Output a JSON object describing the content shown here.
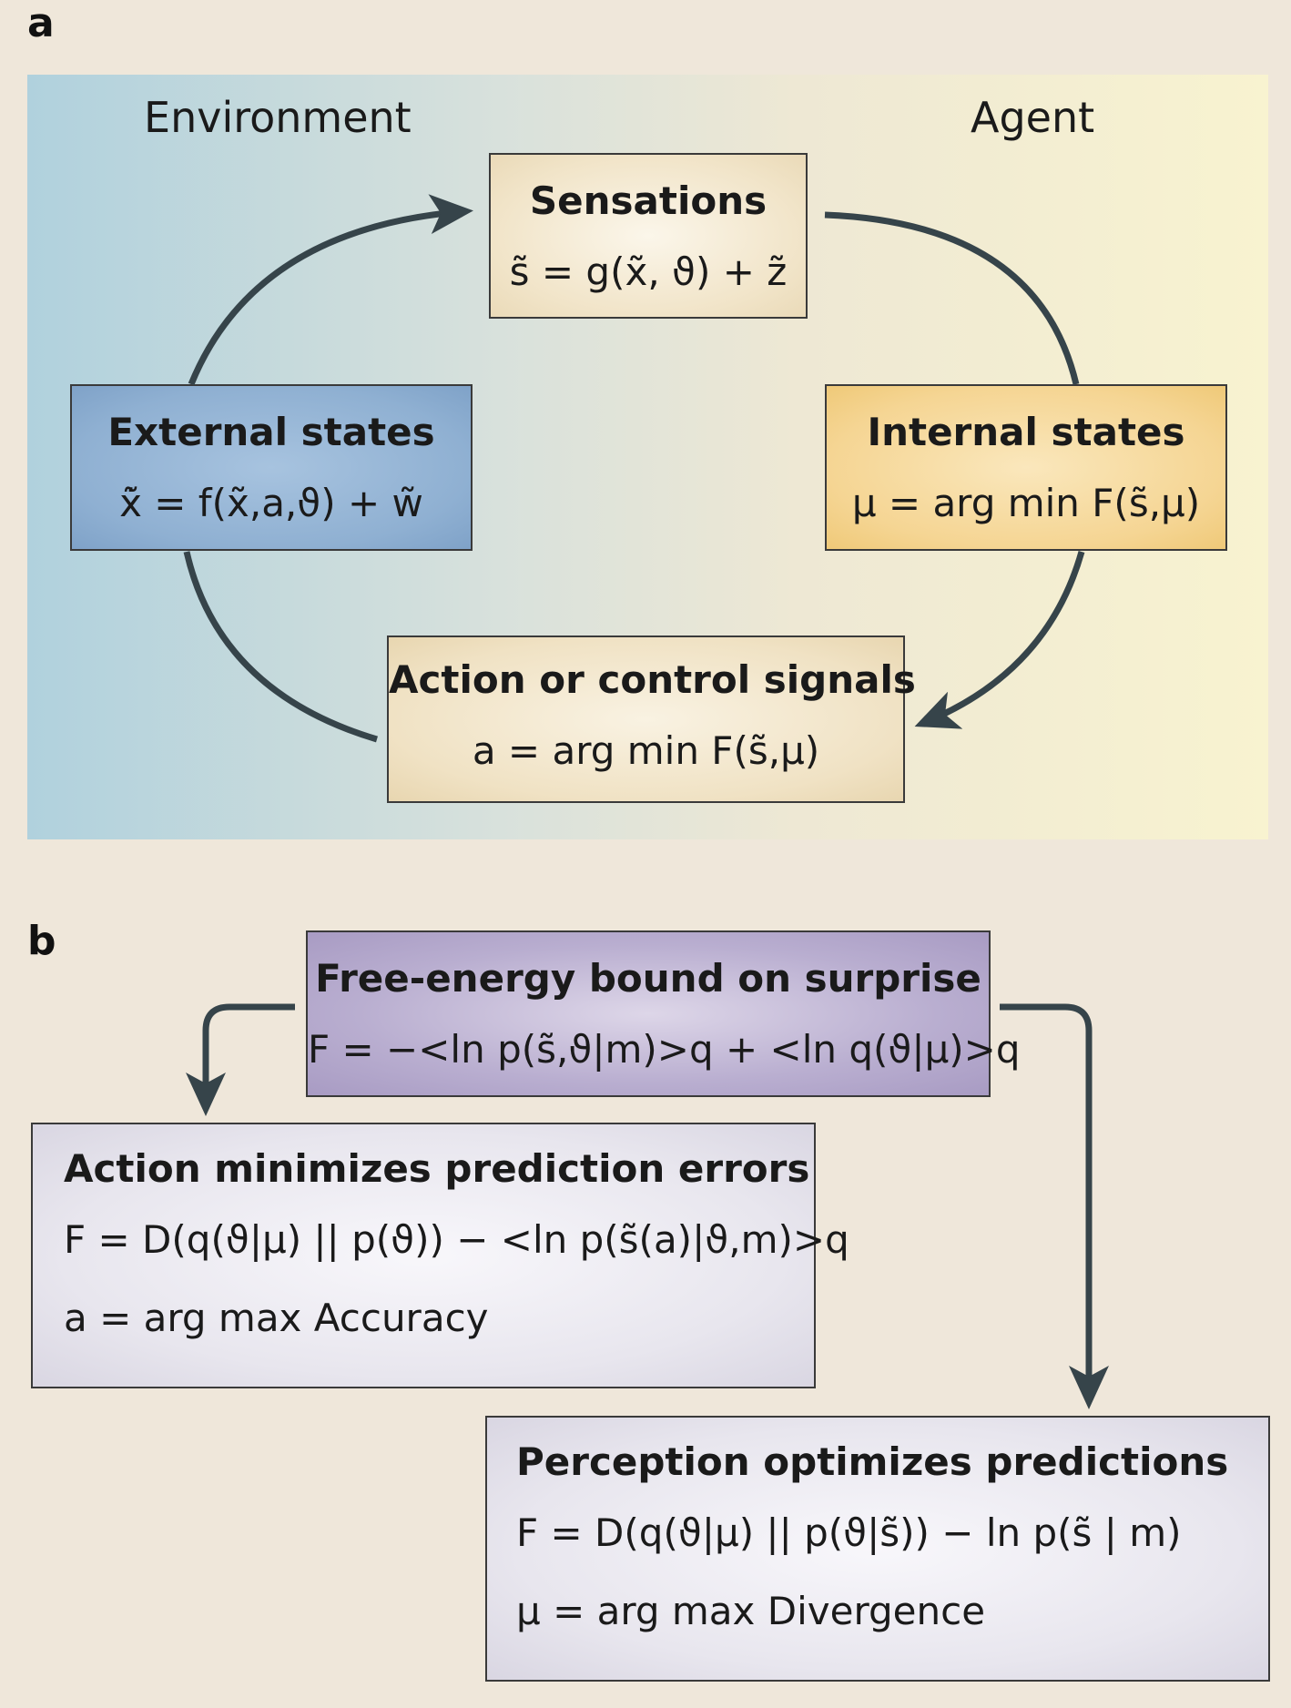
{
  "panels": {
    "a": {
      "letter": "a",
      "region_left": "Environment",
      "region_right": "Agent",
      "sensations": {
        "title": "Sensations",
        "equation": "s̃ = g(x̃, ϑ) + z̃"
      },
      "external": {
        "title": "External states",
        "equation": "x̃̇ = f(x̃,a,ϑ) + w̃"
      },
      "internal": {
        "title": "Internal states",
        "equation": "μ = arg min F(s̃,μ)"
      },
      "action": {
        "title": "Action or control signals",
        "equation": "a = arg min F(s̃,μ)"
      }
    },
    "b": {
      "letter": "b",
      "free_energy": {
        "title": "Free-energy bound on surprise",
        "equation": "F = −<ln p(s̃,ϑ|m)>q + <ln q(ϑ|μ)>q"
      },
      "action_box": {
        "title": "Action minimizes prediction errors",
        "equation": "F = D(q(ϑ|μ) || p(ϑ)) − <ln p(s̃(a)|ϑ,m)>q",
        "objective": "a = arg max Accuracy"
      },
      "perception_box": {
        "title": "Perception optimizes predictions",
        "equation": "F = D(q(ϑ|μ) || p(ϑ|s̃)) − ln p(s̃ | m)",
        "objective": "μ = arg max Divergence"
      }
    }
  },
  "colors": {
    "arrow": "#36444a",
    "sensations_fill": "#f1e4c8",
    "external_fill": "#8fb0d2",
    "internal_fill": "#f5d593",
    "action_fill": "#f0e2c4",
    "free_energy_fill": "#b2a6c8",
    "b_box_fill": "#e8e6ee"
  }
}
